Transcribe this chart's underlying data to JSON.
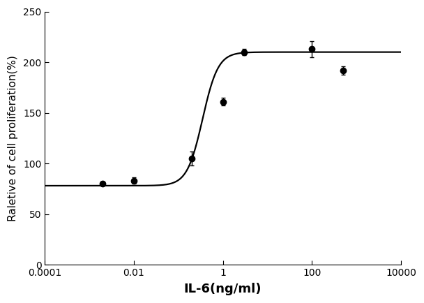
{
  "x_data": [
    0.002,
    0.01,
    0.2,
    1.0,
    3.0,
    100.0,
    500.0
  ],
  "y_data": [
    80.0,
    83.0,
    105.0,
    161.0,
    210.0,
    213.0,
    192.0
  ],
  "y_err": [
    2.0,
    3.0,
    7.0,
    4.0,
    3.0,
    8.0,
    4.0
  ],
  "xlabel": "IL-6(ng/ml)",
  "ylabel": "Raletive of cell proliferation(%)",
  "xlim": [
    0.0001,
    10000
  ],
  "ylim": [
    0,
    250
  ],
  "yticks": [
    0,
    50,
    100,
    150,
    200,
    250
  ],
  "xticks": [
    0.0001,
    0.01,
    1,
    100,
    10000
  ],
  "xtick_labels": [
    "0.0001",
    "0.01",
    "1",
    "100",
    "10000"
  ],
  "background_color": "#ffffff",
  "line_color": "#000000",
  "marker_color": "#000000",
  "marker_size": 6,
  "line_width": 1.6,
  "xlabel_fontsize": 13,
  "ylabel_fontsize": 11,
  "tick_fontsize": 10
}
